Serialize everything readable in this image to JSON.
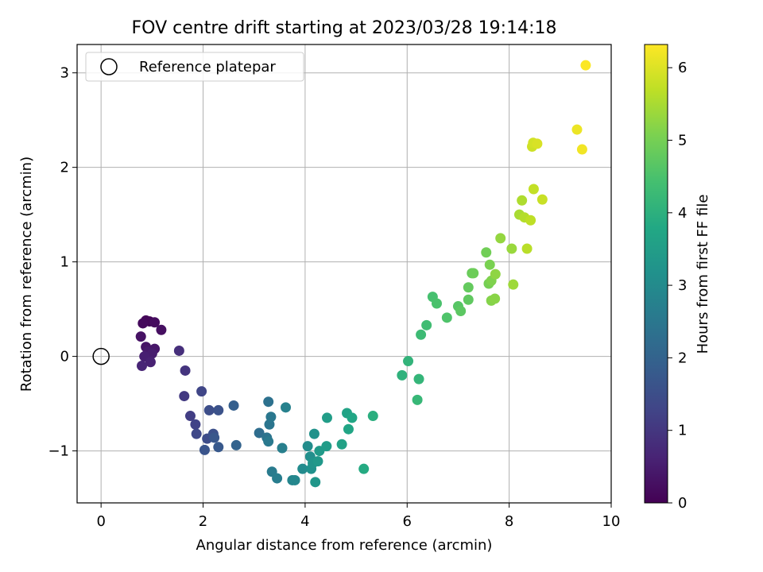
{
  "chart_data": {
    "type": "scatter",
    "title": "FOV centre drift starting at 2023/03/28 19:14:18",
    "xlabel": "Angular distance from reference (arcmin)",
    "ylabel": "Rotation from reference (arcmin)",
    "xlim": [
      -0.47,
      10.0
    ],
    "ylim": [
      -1.55,
      3.3
    ],
    "xticks": [
      0,
      2,
      4,
      6,
      8,
      10
    ],
    "yticks": [
      -1,
      0,
      1,
      2,
      3
    ],
    "xtick_labels": [
      "0",
      "2",
      "4",
      "6",
      "8",
      "10"
    ],
    "ytick_labels": [
      "−1",
      "0",
      "1",
      "2",
      "3"
    ],
    "grid": true,
    "legend": {
      "placement": "upper-left",
      "entries": [
        "Reference platepar"
      ]
    },
    "reference_point": {
      "x": 0,
      "y": 0
    },
    "colorbar": {
      "label": "Hours from first FF file",
      "colormap": "viridis",
      "range": [
        0,
        6.32
      ],
      "ticks": [
        0,
        1,
        2,
        3,
        4,
        5,
        6
      ],
      "tick_labels": [
        "0",
        "1",
        "2",
        "3",
        "4",
        "5",
        "6"
      ]
    },
    "points": [
      {
        "x": 0.95,
        "y": 0.37,
        "h": 0.05
      },
      {
        "x": 0.88,
        "y": 0.38,
        "h": 0.1
      },
      {
        "x": 0.82,
        "y": 0.35,
        "h": 0.15
      },
      {
        "x": 1.05,
        "y": 0.36,
        "h": 0.2
      },
      {
        "x": 1.18,
        "y": 0.28,
        "h": 0.25
      },
      {
        "x": 0.78,
        "y": 0.21,
        "h": 0.3
      },
      {
        "x": 0.88,
        "y": 0.1,
        "h": 0.35
      },
      {
        "x": 1.05,
        "y": 0.08,
        "h": 0.4
      },
      {
        "x": 0.92,
        "y": 0.05,
        "h": 0.45
      },
      {
        "x": 1.0,
        "y": 0.03,
        "h": 0.5
      },
      {
        "x": 0.85,
        "y": 0.0,
        "h": 0.55
      },
      {
        "x": 0.97,
        "y": -0.06,
        "h": 0.6
      },
      {
        "x": 0.8,
        "y": -0.1,
        "h": 0.65
      },
      {
        "x": 1.53,
        "y": 0.06,
        "h": 0.85
      },
      {
        "x": 1.65,
        "y": -0.15,
        "h": 0.95
      },
      {
        "x": 1.63,
        "y": -0.42,
        "h": 1.05
      },
      {
        "x": 1.75,
        "y": -0.63,
        "h": 1.15
      },
      {
        "x": 1.85,
        "y": -0.72,
        "h": 1.25
      },
      {
        "x": 1.97,
        "y": -0.37,
        "h": 1.3
      },
      {
        "x": 1.87,
        "y": -0.82,
        "h": 1.35
      },
      {
        "x": 2.08,
        "y": -0.87,
        "h": 1.45
      },
      {
        "x": 2.12,
        "y": -0.57,
        "h": 1.5
      },
      {
        "x": 2.2,
        "y": -0.82,
        "h": 1.55
      },
      {
        "x": 2.3,
        "y": -0.57,
        "h": 1.6
      },
      {
        "x": 2.03,
        "y": -0.99,
        "h": 1.65
      },
      {
        "x": 2.22,
        "y": -0.86,
        "h": 1.7
      },
      {
        "x": 2.3,
        "y": -0.96,
        "h": 1.75
      },
      {
        "x": 2.6,
        "y": -0.52,
        "h": 1.9
      },
      {
        "x": 2.65,
        "y": -0.94,
        "h": 2.0
      },
      {
        "x": 3.1,
        "y": -0.81,
        "h": 2.25
      },
      {
        "x": 3.28,
        "y": -0.48,
        "h": 2.35
      },
      {
        "x": 3.25,
        "y": -0.86,
        "h": 2.4
      },
      {
        "x": 3.3,
        "y": -0.72,
        "h": 2.45
      },
      {
        "x": 3.33,
        "y": -0.64,
        "h": 2.5
      },
      {
        "x": 3.28,
        "y": -0.9,
        "h": 2.55
      },
      {
        "x": 3.35,
        "y": -1.22,
        "h": 2.6
      },
      {
        "x": 3.45,
        "y": -1.29,
        "h": 2.65
      },
      {
        "x": 3.55,
        "y": -0.97,
        "h": 2.7
      },
      {
        "x": 3.62,
        "y": -0.54,
        "h": 2.75
      },
      {
        "x": 3.75,
        "y": -1.31,
        "h": 2.85
      },
      {
        "x": 3.8,
        "y": -1.31,
        "h": 2.9
      },
      {
        "x": 3.95,
        "y": -1.19,
        "h": 3.0
      },
      {
        "x": 4.05,
        "y": -0.95,
        "h": 3.05
      },
      {
        "x": 4.1,
        "y": -1.06,
        "h": 3.1
      },
      {
        "x": 4.12,
        "y": -1.19,
        "h": 3.15
      },
      {
        "x": 4.18,
        "y": -0.82,
        "h": 3.2
      },
      {
        "x": 4.15,
        "y": -1.13,
        "h": 3.25
      },
      {
        "x": 4.2,
        "y": -1.33,
        "h": 3.3
      },
      {
        "x": 4.25,
        "y": -1.11,
        "h": 3.35
      },
      {
        "x": 4.28,
        "y": -1.0,
        "h": 3.4
      },
      {
        "x": 4.42,
        "y": -0.95,
        "h": 3.45
      },
      {
        "x": 4.43,
        "y": -0.65,
        "h": 3.5
      },
      {
        "x": 4.72,
        "y": -0.93,
        "h": 3.6
      },
      {
        "x": 4.82,
        "y": -0.6,
        "h": 3.65
      },
      {
        "x": 4.85,
        "y": -0.77,
        "h": 3.7
      },
      {
        "x": 4.92,
        "y": -0.65,
        "h": 3.75
      },
      {
        "x": 5.15,
        "y": -1.19,
        "h": 3.85
      },
      {
        "x": 5.33,
        "y": -0.63,
        "h": 3.95
      },
      {
        "x": 5.9,
        "y": -0.2,
        "h": 4.05
      },
      {
        "x": 6.02,
        "y": -0.05,
        "h": 4.1
      },
      {
        "x": 6.23,
        "y": -0.24,
        "h": 4.15
      },
      {
        "x": 6.2,
        "y": -0.46,
        "h": 4.2
      },
      {
        "x": 6.27,
        "y": 0.23,
        "h": 4.3
      },
      {
        "x": 6.38,
        "y": 0.33,
        "h": 4.35
      },
      {
        "x": 6.5,
        "y": 0.63,
        "h": 4.45
      },
      {
        "x": 6.58,
        "y": 0.56,
        "h": 4.5
      },
      {
        "x": 6.78,
        "y": 0.41,
        "h": 4.55
      },
      {
        "x": 7.0,
        "y": 0.53,
        "h": 4.65
      },
      {
        "x": 7.05,
        "y": 0.48,
        "h": 4.7
      },
      {
        "x": 7.2,
        "y": 0.6,
        "h": 4.75
      },
      {
        "x": 7.2,
        "y": 0.73,
        "h": 4.8
      },
      {
        "x": 7.27,
        "y": 0.88,
        "h": 4.85
      },
      {
        "x": 7.3,
        "y": 0.88,
        "h": 4.9
      },
      {
        "x": 7.55,
        "y": 1.1,
        "h": 4.95
      },
      {
        "x": 7.6,
        "y": 0.77,
        "h": 5.0
      },
      {
        "x": 7.62,
        "y": 0.97,
        "h": 5.05
      },
      {
        "x": 7.65,
        "y": 0.8,
        "h": 5.1
      },
      {
        "x": 7.65,
        "y": 0.59,
        "h": 5.15
      },
      {
        "x": 7.72,
        "y": 0.61,
        "h": 5.2
      },
      {
        "x": 7.73,
        "y": 0.87,
        "h": 5.25
      },
      {
        "x": 7.83,
        "y": 1.25,
        "h": 5.3
      },
      {
        "x": 8.05,
        "y": 1.14,
        "h": 5.35
      },
      {
        "x": 8.08,
        "y": 0.76,
        "h": 5.4
      },
      {
        "x": 8.2,
        "y": 1.5,
        "h": 5.5
      },
      {
        "x": 8.25,
        "y": 1.65,
        "h": 5.55
      },
      {
        "x": 8.3,
        "y": 1.47,
        "h": 5.6
      },
      {
        "x": 8.35,
        "y": 1.14,
        "h": 5.65
      },
      {
        "x": 8.42,
        "y": 1.44,
        "h": 5.7
      },
      {
        "x": 8.48,
        "y": 1.77,
        "h": 5.75
      },
      {
        "x": 8.65,
        "y": 1.66,
        "h": 5.8
      },
      {
        "x": 8.45,
        "y": 2.22,
        "h": 5.85
      },
      {
        "x": 8.47,
        "y": 2.26,
        "h": 5.9
      },
      {
        "x": 8.55,
        "y": 2.25,
        "h": 5.95
      },
      {
        "x": 9.33,
        "y": 2.4,
        "h": 6.15
      },
      {
        "x": 9.43,
        "y": 2.19,
        "h": 6.2
      },
      {
        "x": 9.5,
        "y": 3.08,
        "h": 6.3
      }
    ]
  }
}
